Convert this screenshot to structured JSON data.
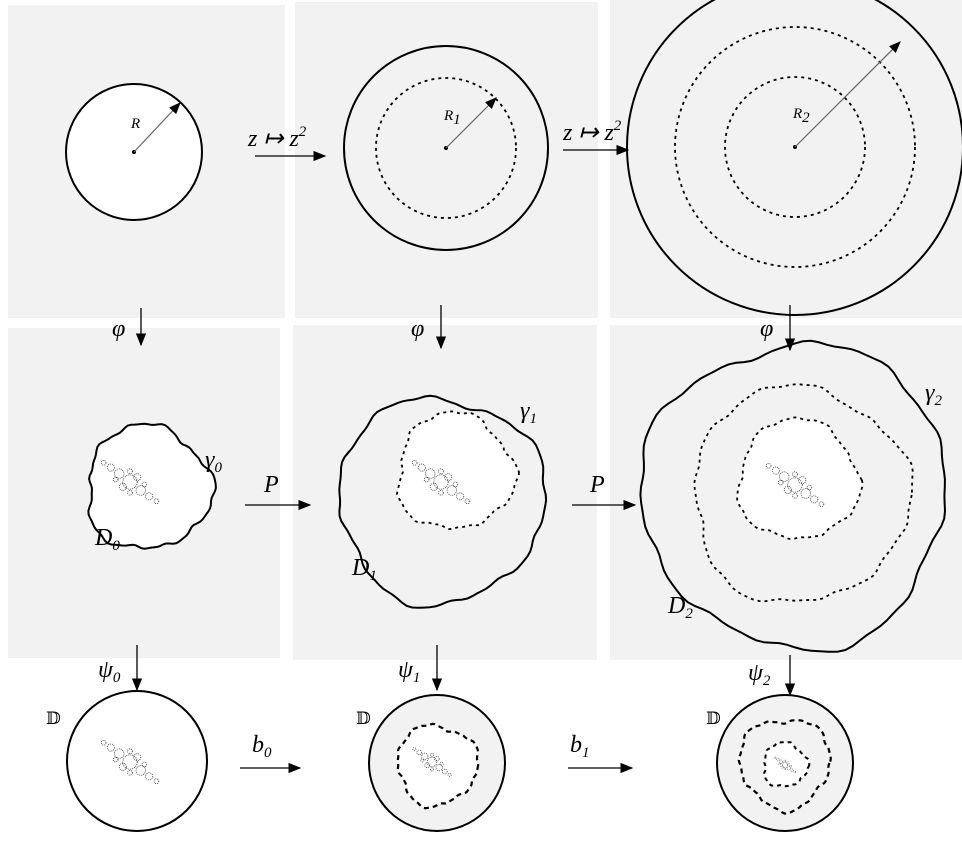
{
  "top": {
    "radii": [
      {
        "base": "R"
      },
      {
        "base": "R",
        "sub": "1"
      },
      {
        "base": "R",
        "sub": "2"
      }
    ],
    "maps": [
      {
        "base": "z ↦ z",
        "sup": "2"
      },
      {
        "base": "z ↦ z",
        "sup": "2"
      }
    ],
    "down_maps": [
      "φ",
      "φ",
      "φ"
    ]
  },
  "middle": {
    "curves": [
      {
        "base": "γ",
        "sub": "0"
      },
      {
        "base": "γ",
        "sub": "1"
      },
      {
        "base": "γ",
        "sub": "2"
      }
    ],
    "domains": [
      {
        "base": "D",
        "sub": "0"
      },
      {
        "base": "D",
        "sub": "1"
      },
      {
        "base": "D",
        "sub": "2"
      }
    ],
    "maps": [
      "P",
      "P"
    ],
    "down_maps": [
      {
        "base": "ψ",
        "sub": "0"
      },
      {
        "base": "ψ",
        "sub": "1"
      },
      {
        "base": "ψ",
        "sub": "2"
      }
    ]
  },
  "bottom": {
    "discs": [
      "𝔻",
      "𝔻",
      "𝔻"
    ],
    "maps": [
      {
        "base": "b",
        "sub": "0"
      },
      {
        "base": "b",
        "sub": "1"
      }
    ]
  }
}
